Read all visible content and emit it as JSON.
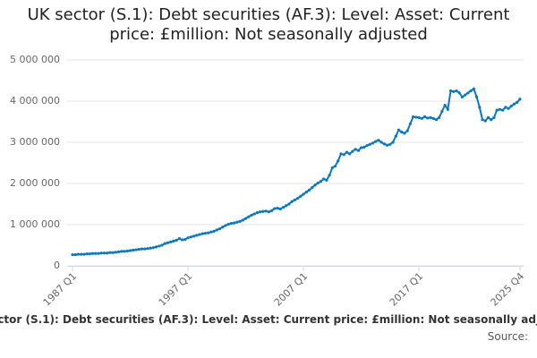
{
  "chart_data": {
    "type": "line",
    "title": "UK sector (S.1): Debt securities (AF.3): Level: Asset: Current price: £million: Not seasonally adjusted",
    "source_label": "Source:",
    "color": "#0c78bd",
    "grid": true,
    "ylim": [
      0,
      5000000
    ],
    "yticks": [
      0,
      {
        "value": 1000000,
        "label": "1 000 000"
      },
      {
        "value": 2000000,
        "label": "2 000 000"
      },
      {
        "value": 3000000,
        "label": "3 000 000"
      },
      {
        "value": 4000000,
        "label": "4 000 000"
      },
      {
        "value": 5000000,
        "label": "5 000 000"
      }
    ],
    "categories": [
      "1987 Q1",
      null,
      null,
      null,
      null,
      null,
      null,
      null,
      null,
      null,
      null,
      null,
      null,
      null,
      null,
      null,
      null,
      null,
      null,
      null,
      null,
      null,
      null,
      null,
      null,
      null,
      null,
      null,
      null,
      null,
      null,
      null,
      null,
      null,
      null,
      null,
      null,
      null,
      null,
      null,
      "1997 Q1",
      null,
      null,
      null,
      null,
      null,
      null,
      null,
      null,
      null,
      null,
      null,
      null,
      null,
      null,
      null,
      null,
      null,
      null,
      null,
      null,
      null,
      null,
      null,
      null,
      null,
      null,
      null,
      null,
      null,
      null,
      null,
      null,
      null,
      null,
      null,
      null,
      null,
      null,
      null,
      "2007 Q1",
      null,
      null,
      null,
      null,
      null,
      null,
      null,
      null,
      null,
      null,
      null,
      null,
      null,
      null,
      null,
      null,
      null,
      null,
      null,
      null,
      null,
      null,
      null,
      null,
      null,
      null,
      null,
      null,
      null,
      null,
      null,
      null,
      null,
      null,
      null,
      null,
      null,
      null,
      null,
      "2017 Q1",
      null,
      null,
      null,
      null,
      null,
      null,
      null,
      null,
      null,
      null,
      null,
      null,
      null,
      null,
      null,
      null,
      null,
      null,
      null,
      null,
      null,
      null,
      null,
      null,
      null,
      null,
      null,
      null,
      null,
      null,
      null,
      null,
      null,
      null,
      "2025 Q4"
    ],
    "values": [
      270000,
      270000,
      280000,
      280000,
      280000,
      290000,
      290000,
      300000,
      300000,
      300000,
      310000,
      310000,
      310000,
      320000,
      320000,
      330000,
      340000,
      350000,
      350000,
      360000,
      370000,
      380000,
      390000,
      400000,
      410000,
      410000,
      420000,
      430000,
      440000,
      460000,
      480000,
      500000,
      540000,
      560000,
      580000,
      600000,
      620000,
      660000,
      630000,
      640000,
      680000,
      700000,
      720000,
      740000,
      760000,
      780000,
      790000,
      800000,
      820000,
      840000,
      870000,
      900000,
      940000,
      980000,
      1010000,
      1030000,
      1040000,
      1060000,
      1080000,
      1110000,
      1150000,
      1190000,
      1230000,
      1260000,
      1290000,
      1310000,
      1320000,
      1330000,
      1310000,
      1340000,
      1390000,
      1400000,
      1380000,
      1420000,
      1460000,
      1500000,
      1560000,
      1600000,
      1640000,
      1690000,
      1740000,
      1790000,
      1840000,
      1900000,
      1960000,
      2010000,
      2050000,
      2110000,
      2080000,
      2200000,
      2380000,
      2420000,
      2550000,
      2720000,
      2700000,
      2760000,
      2720000,
      2780000,
      2830000,
      2800000,
      2870000,
      2880000,
      2920000,
      2950000,
      2980000,
      3020000,
      3050000,
      3000000,
      2960000,
      2930000,
      2950000,
      3000000,
      3150000,
      3300000,
      3250000,
      3220000,
      3280000,
      3450000,
      3620000,
      3610000,
      3600000,
      3580000,
      3620000,
      3590000,
      3600000,
      3580000,
      3550000,
      3600000,
      3750000,
      3900000,
      3800000,
      4250000,
      4230000,
      4250000,
      4200000,
      4100000,
      4150000,
      4200000,
      4250000,
      4300000,
      4100000,
      3850000,
      3550000,
      3520000,
      3600000,
      3550000,
      3600000,
      3780000,
      3800000,
      3780000,
      3850000,
      3820000,
      3880000,
      3930000,
      3970000,
      4050000
    ]
  }
}
